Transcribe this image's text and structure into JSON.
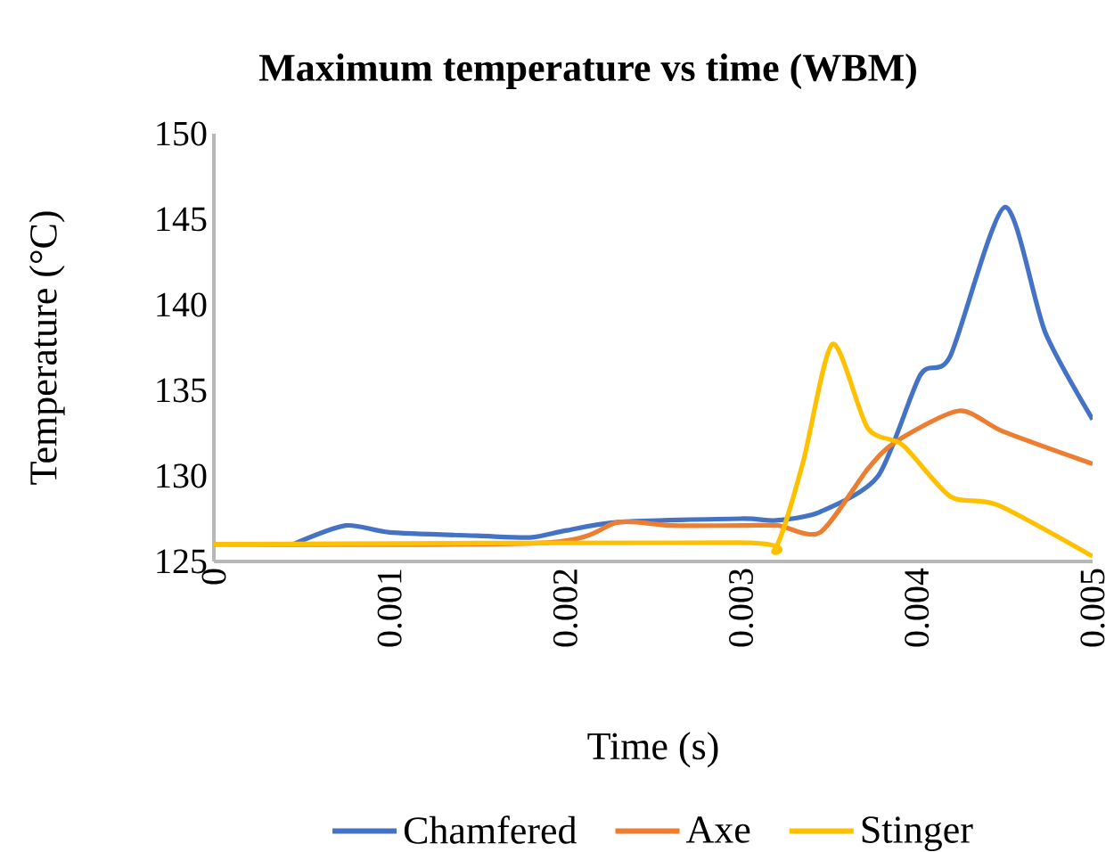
{
  "chart_data": {
    "type": "line",
    "title": "Maximum temperature vs time (WBM)",
    "xlabel": "Time (s)",
    "ylabel": "Temperature (°C)",
    "xlim": [
      0,
      0.005
    ],
    "xticks": [
      0,
      0.001,
      0.002,
      0.003,
      0.004,
      0.005
    ],
    "ylim": [
      125,
      150
    ],
    "yticks": [
      125,
      130,
      135,
      140,
      145,
      150
    ],
    "grid": false,
    "legend": "bottom",
    "marker": "none",
    "line_style": "solid",
    "series": [
      {
        "name": "Chamfered",
        "color": "#4472c4",
        "x": [
          0.00045,
          0.00075,
          0.001,
          0.0015,
          0.0018,
          0.002,
          0.0023,
          0.003,
          0.0032,
          0.00345,
          0.00378,
          0.00402,
          0.00419,
          0.0045,
          0.00473,
          0.005
        ],
        "values": [
          126,
          127.1,
          126.7,
          126.5,
          126.4,
          126.8,
          127.3,
          127.5,
          127.4,
          127.9,
          130,
          135.9,
          137,
          145.7,
          138.4,
          133.3
        ]
      },
      {
        "name": "Axe",
        "color": "#ed7d31",
        "x": [
          0,
          0.0019,
          0.0023,
          0.0026,
          0.003,
          0.00321,
          0.00345,
          0.00372,
          0.00388,
          0.00424,
          0.00449,
          0.005
        ],
        "values": [
          126,
          126.1,
          127.3,
          127.1,
          127.1,
          127.1,
          126.7,
          130.4,
          132,
          133.8,
          132.6,
          130.7
        ]
      },
      {
        "name": "Stinger",
        "color": "#ffc000",
        "x": [
          0,
          0.00299,
          0.00319,
          0.00335,
          0.00352,
          0.00372,
          0.00392,
          0.00419,
          0.00446,
          0.005
        ],
        "values": [
          126,
          126.1,
          125.7,
          130.7,
          137.7,
          132.8,
          131.8,
          128.8,
          128.3,
          125.3
        ]
      }
    ]
  }
}
